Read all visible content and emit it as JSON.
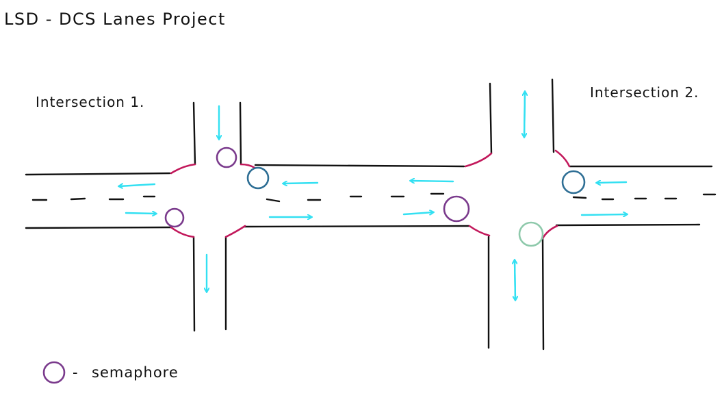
{
  "title": "LSD - DCS Lanes Project",
  "intersections": [
    {
      "label": "Intersection 1."
    },
    {
      "label": "Intersection 2."
    }
  ],
  "legend": {
    "dash": "-",
    "text": "semaphore",
    "icon": "circle-semaphore-icon"
  },
  "colors": {
    "road_line": "#111111",
    "corner_curve": "#c2185b",
    "arrow": "#33e0f2",
    "semaphore_purple": "#7a3a8c",
    "semaphore_blue": "#2f6f95",
    "semaphore_green": "#8ec9ab"
  }
}
